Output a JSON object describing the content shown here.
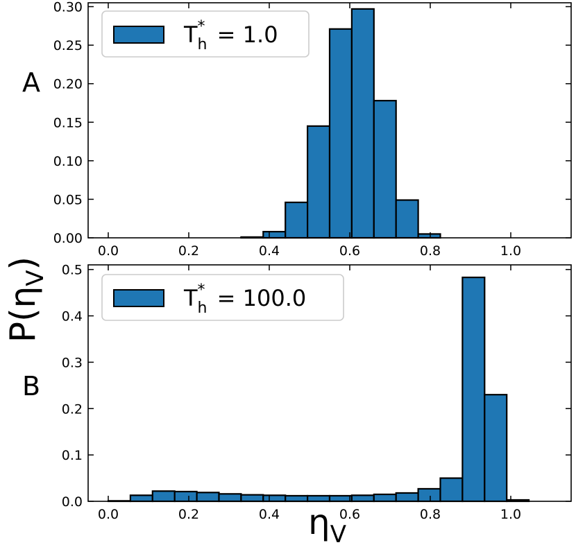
{
  "figure": {
    "ylabel_base": "P(η",
    "ylabel_sub": "V",
    "ylabel_close": ")",
    "xlabel_base": "η",
    "xlabel_sub": "V"
  },
  "chart_data": [
    {
      "type": "bar",
      "panel_label": "A",
      "bar_color": "#1f77b4",
      "edge_color": "#000000",
      "legend": {
        "base": "T",
        "sub": "h",
        "sup": "*",
        "value": " = 1.0"
      },
      "xlim": [
        -0.05,
        1.15
      ],
      "ylim": [
        0,
        0.305
      ],
      "xticks": [
        "0.0",
        "0.2",
        "0.4",
        "0.6",
        "0.8",
        "1.0"
      ],
      "yticks": [
        "0.00",
        "0.05",
        "0.10",
        "0.15",
        "0.20",
        "0.25",
        "0.30"
      ],
      "bins": {
        "edges": [
          0.0,
          0.055,
          0.11,
          0.165,
          0.22,
          0.275,
          0.33,
          0.385,
          0.44,
          0.495,
          0.55,
          0.605,
          0.66,
          0.715,
          0.77,
          0.825,
          0.88,
          0.935,
          0.99,
          1.045,
          1.1
        ],
        "counts": [
          0,
          0,
          0,
          0,
          0,
          0,
          0.001,
          0.008,
          0.046,
          0.145,
          0.271,
          0.297,
          0.178,
          0.049,
          0.005,
          0,
          0,
          0,
          0,
          0
        ]
      }
    },
    {
      "type": "bar",
      "panel_label": "B",
      "bar_color": "#1f77b4",
      "edge_color": "#000000",
      "legend": {
        "base": "T",
        "sub": "h",
        "sup": "*",
        "value": " = 100.0"
      },
      "xlim": [
        -0.05,
        1.15
      ],
      "ylim": [
        0,
        0.51
      ],
      "xticks": [
        "0.0",
        "0.2",
        "0.4",
        "0.6",
        "0.8",
        "1.0"
      ],
      "yticks": [
        "0.0",
        "0.1",
        "0.2",
        "0.3",
        "0.4",
        "0.5"
      ],
      "bins": {
        "edges": [
          0.0,
          0.055,
          0.11,
          0.165,
          0.22,
          0.275,
          0.33,
          0.385,
          0.44,
          0.495,
          0.55,
          0.605,
          0.66,
          0.715,
          0.77,
          0.825,
          0.88,
          0.935,
          0.99,
          1.045,
          1.1
        ],
        "counts": [
          0.001,
          0.013,
          0.022,
          0.021,
          0.019,
          0.016,
          0.014,
          0.013,
          0.012,
          0.012,
          0.012,
          0.013,
          0.015,
          0.018,
          0.027,
          0.05,
          0.483,
          0.23,
          0.003,
          0
        ]
      }
    }
  ]
}
